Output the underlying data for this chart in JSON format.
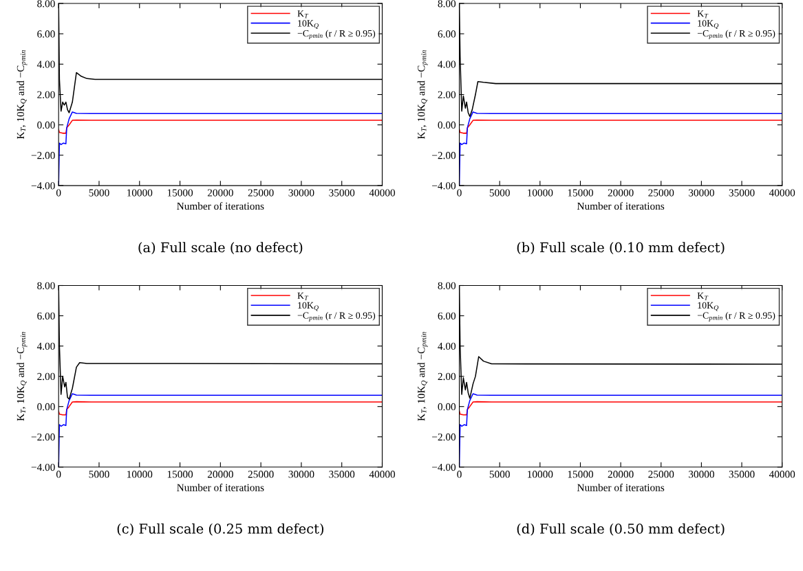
{
  "chart_data": [
    {
      "type": "line",
      "title": "(a) Full scale (no defect)",
      "xlabel": "Number of iterations",
      "ylabel": "K$_{T}$, 10K$_{Q}$ and −C$_{p}$$_{min}$",
      "xlim": [
        0,
        40000
      ],
      "ylim": [
        -4,
        8
      ],
      "xticks": [
        0,
        5000,
        10000,
        15000,
        20000,
        25000,
        30000,
        35000,
        40000
      ],
      "yticks": [
        {
          "value": -4,
          "label": "−4.00"
        },
        {
          "value": -2,
          "label": "−2.00"
        },
        {
          "value": 0,
          "label": "0.00"
        },
        {
          "value": 2,
          "label": "2.00"
        },
        {
          "value": 4,
          "label": "4.00"
        },
        {
          "value": 6,
          "label": "6.00"
        },
        {
          "value": 8,
          "label": "8.00"
        }
      ],
      "legend": "top right",
      "grid": false,
      "series": [
        {
          "name": "K$_{T}$",
          "color": "#ff0000",
          "x": [
            0,
            100,
            500,
            900,
            1000,
            1300,
            1700,
            2200,
            4000,
            40000
          ],
          "values": [
            -0.3,
            -0.5,
            -0.55,
            -0.55,
            -0.2,
            0.0,
            0.3,
            0.32,
            0.3,
            0.3
          ]
        },
        {
          "name": "10K$_{Q}$",
          "color": "#0000ff",
          "x": [
            0,
            100,
            300,
            600,
            900,
            1000,
            1300,
            1700,
            2200,
            4000,
            40000
          ],
          "values": [
            -4,
            -1.2,
            -1.3,
            -1.2,
            -1.25,
            -0.2,
            0.4,
            0.85,
            0.76,
            0.75,
            0.75
          ]
        },
        {
          "name": "−C$_{p}$$_{min}$ (r / R ≥ 0.95)",
          "color": "#000000",
          "x": [
            0,
            100,
            300,
            500,
            700,
            900,
            1100,
            1300,
            1700,
            2200,
            2800,
            3500,
            4500,
            40000
          ],
          "values": [
            8,
            3.0,
            0.9,
            1.5,
            1.3,
            1.5,
            1.0,
            0.8,
            1.5,
            3.44,
            3.2,
            3.05,
            3.0,
            3.0
          ]
        }
      ]
    },
    {
      "type": "line",
      "title": "(b) Full scale (0.10 mm defect)",
      "xlabel": "Number of iterations",
      "ylabel": "K$_{T}$, 10K$_{Q}$ and −C$_{p}$$_{min}$",
      "xlim": [
        0,
        40000
      ],
      "ylim": [
        -4,
        8
      ],
      "xticks": [
        0,
        5000,
        10000,
        15000,
        20000,
        25000,
        30000,
        35000,
        40000
      ],
      "yticks": [
        {
          "value": -4,
          "label": "−4.00"
        },
        {
          "value": -2,
          "label": "−2.00"
        },
        {
          "value": 0,
          "label": "0.00"
        },
        {
          "value": 2,
          "label": "2.00"
        },
        {
          "value": 4,
          "label": "4.00"
        },
        {
          "value": 6,
          "label": "6.00"
        },
        {
          "value": 8,
          "label": "8.00"
        }
      ],
      "legend": "top right",
      "grid": false,
      "series": [
        {
          "name": "K$_{T}$",
          "color": "#ff0000",
          "x": [
            0,
            100,
            500,
            900,
            1000,
            1300,
            1700,
            2200,
            4000,
            40000
          ],
          "values": [
            -0.3,
            -0.5,
            -0.55,
            -0.55,
            -0.2,
            0.0,
            0.3,
            0.32,
            0.3,
            0.3
          ]
        },
        {
          "name": "10K$_{Q}$",
          "color": "#0000ff",
          "x": [
            0,
            100,
            300,
            600,
            900,
            1000,
            1300,
            1700,
            2200,
            4000,
            40000
          ],
          "values": [
            -4,
            -1.2,
            -1.3,
            -1.2,
            -1.25,
            -0.2,
            0.4,
            0.85,
            0.76,
            0.75,
            0.75
          ]
        },
        {
          "name": "−C$_{p}$$_{min}$ (r / R ≥ 0.95)",
          "color": "#000000",
          "x": [
            0,
            100,
            300,
            500,
            750,
            900,
            1100,
            1300,
            1600,
            2000,
            2300,
            3000,
            4500,
            40000
          ],
          "values": [
            8,
            4.5,
            0.9,
            1.9,
            1.1,
            1.5,
            0.8,
            0.55,
            1.0,
            2.0,
            2.85,
            2.8,
            2.72,
            2.72
          ]
        }
      ]
    },
    {
      "type": "line",
      "title": "(c) Full scale (0.25 mm defect)",
      "xlabel": "Number of iterations",
      "ylabel": "K$_{T}$, 10K$_{Q}$ and −C$_{p}$$_{min}$",
      "xlim": [
        0,
        40000
      ],
      "ylim": [
        -4,
        8
      ],
      "xticks": [
        0,
        5000,
        10000,
        15000,
        20000,
        25000,
        30000,
        35000,
        40000
      ],
      "yticks": [
        {
          "value": -4,
          "label": "−4.00"
        },
        {
          "value": -2,
          "label": "−2.00"
        },
        {
          "value": 0,
          "label": "0.00"
        },
        {
          "value": 2,
          "label": "2.00"
        },
        {
          "value": 4,
          "label": "4.00"
        },
        {
          "value": 6,
          "label": "6.00"
        },
        {
          "value": 8,
          "label": "8.00"
        }
      ],
      "legend": "top right",
      "grid": false,
      "series": [
        {
          "name": "K$_{T}$",
          "color": "#ff0000",
          "x": [
            0,
            100,
            500,
            900,
            1000,
            1300,
            1700,
            2200,
            4000,
            40000
          ],
          "values": [
            -0.3,
            -0.5,
            -0.55,
            -0.55,
            -0.2,
            0.0,
            0.3,
            0.32,
            0.3,
            0.3
          ]
        },
        {
          "name": "10K$_{Q}$",
          "color": "#0000ff",
          "x": [
            0,
            100,
            300,
            600,
            900,
            1000,
            1300,
            1700,
            2200,
            4000,
            40000
          ],
          "values": [
            -4,
            -1.2,
            -1.3,
            -1.2,
            -1.25,
            -0.2,
            0.4,
            0.85,
            0.76,
            0.75,
            0.75
          ]
        },
        {
          "name": "−C$_{p}$$_{min}$ (r / R ≥ 0.95)",
          "color": "#000000",
          "x": [
            0,
            100,
            300,
            500,
            750,
            900,
            1100,
            1300,
            1700,
            2200,
            2600,
            3500,
            40000
          ],
          "values": [
            8,
            4.0,
            0.8,
            2.0,
            1.3,
            1.6,
            0.6,
            0.5,
            1.2,
            2.6,
            2.9,
            2.85,
            2.82
          ]
        }
      ]
    },
    {
      "type": "line",
      "title": "(d) Full scale (0.50 mm defect)",
      "xlabel": "Number of iterations",
      "ylabel": "K$_{T}$, 10K$_{Q}$ and −C$_{p}$$_{min}$",
      "xlim": [
        0,
        40000
      ],
      "ylim": [
        -4,
        8
      ],
      "xticks": [
        0,
        5000,
        10000,
        15000,
        20000,
        25000,
        30000,
        35000,
        40000
      ],
      "yticks": [
        {
          "value": -4,
          "label": "−4.00"
        },
        {
          "value": -2,
          "label": "−2.00"
        },
        {
          "value": 0,
          "label": "0.00"
        },
        {
          "value": 2,
          "label": "2.00"
        },
        {
          "value": 4,
          "label": "4.00"
        },
        {
          "value": 6,
          "label": "6.00"
        },
        {
          "value": 8,
          "label": "8.00"
        }
      ],
      "legend": "top right",
      "grid": false,
      "series": [
        {
          "name": "K$_{T}$",
          "color": "#ff0000",
          "x": [
            0,
            100,
            500,
            900,
            1000,
            1300,
            1700,
            2200,
            4000,
            40000
          ],
          "values": [
            -0.3,
            -0.5,
            -0.55,
            -0.55,
            -0.2,
            0.0,
            0.3,
            0.32,
            0.3,
            0.3
          ]
        },
        {
          "name": "10K$_{Q}$",
          "color": "#0000ff",
          "x": [
            0,
            100,
            300,
            600,
            900,
            1000,
            1300,
            1700,
            2200,
            4000,
            40000
          ],
          "values": [
            -4,
            -1.2,
            -1.3,
            -1.2,
            -1.25,
            -0.2,
            0.4,
            0.85,
            0.76,
            0.75,
            0.75
          ]
        },
        {
          "name": "−C$_{p}$$_{min}$ (r / R ≥ 0.95)",
          "color": "#000000",
          "x": [
            0,
            100,
            300,
            500,
            750,
            900,
            1100,
            1300,
            1700,
            2000,
            2400,
            3000,
            4000,
            40000
          ],
          "values": [
            8,
            4.0,
            0.8,
            1.9,
            1.1,
            1.6,
            0.9,
            0.55,
            1.5,
            2.0,
            3.3,
            3.0,
            2.82,
            2.8
          ]
        }
      ]
    }
  ]
}
